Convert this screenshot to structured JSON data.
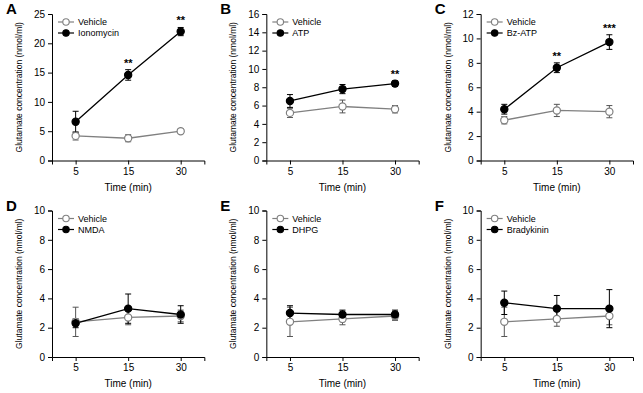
{
  "chart_data": [
    {
      "type": "line",
      "title": "A",
      "x_label": "Time (min)",
      "y_label": "Glutamate concentration (nmol/ml)",
      "categories": [
        "5",
        "15",
        "30"
      ],
      "ylim": [
        0,
        25
      ],
      "yticks": [
        0,
        5,
        10,
        15,
        20,
        25
      ],
      "grid": false,
      "legend": "upper-left",
      "series": [
        {
          "name": "Vehicle",
          "color": "#808080",
          "marker": "open-circle",
          "values": [
            4.2,
            3.8,
            5.0
          ],
          "errors": [
            0.7,
            0.6,
            0.4
          ]
        },
        {
          "name": "Ionomycin",
          "color": "#000000",
          "marker": "circle",
          "values": [
            6.6,
            14.6,
            22.0
          ],
          "errors": [
            1.8,
            0.9,
            0.7
          ]
        }
      ],
      "annotations": [
        {
          "text": "**",
          "x": "15"
        },
        {
          "text": "**",
          "x": "30"
        }
      ]
    },
    {
      "type": "line",
      "title": "B",
      "x_label": "Time (min)",
      "y_label": "Glutamate concentration (nmol/ml)",
      "categories": [
        "5",
        "15",
        "30"
      ],
      "ylim": [
        0,
        16
      ],
      "yticks": [
        0,
        2,
        4,
        6,
        8,
        10,
        12,
        14,
        16
      ],
      "grid": false,
      "legend": "upper-left",
      "series": [
        {
          "name": "Vehicle",
          "color": "#808080",
          "marker": "open-circle",
          "values": [
            5.2,
            5.9,
            5.6
          ],
          "errors": [
            0.5,
            0.7,
            0.4
          ]
        },
        {
          "name": "ATP",
          "color": "#000000",
          "marker": "circle",
          "values": [
            6.5,
            7.8,
            8.4
          ],
          "errors": [
            0.7,
            0.5,
            0.3
          ]
        }
      ],
      "annotations": [
        {
          "text": "**",
          "x": "30"
        }
      ]
    },
    {
      "type": "line",
      "title": "C",
      "x_label": "Time (min)",
      "y_label": "Glutamate concentration (nmol/ml)",
      "categories": [
        "5",
        "15",
        "30"
      ],
      "ylim": [
        0,
        12
      ],
      "yticks": [
        0,
        2,
        4,
        6,
        8,
        10,
        12
      ],
      "grid": false,
      "legend": "upper-left",
      "series": [
        {
          "name": "Vehicle",
          "color": "#808080",
          "marker": "open-circle",
          "values": [
            3.3,
            4.1,
            4.0
          ],
          "errors": [
            0.3,
            0.5,
            0.5
          ]
        },
        {
          "name": "Bz-ATP",
          "color": "#000000",
          "marker": "circle",
          "values": [
            4.2,
            7.6,
            9.7
          ],
          "errors": [
            0.4,
            0.4,
            0.6
          ]
        }
      ],
      "annotations": [
        {
          "text": "**",
          "x": "15"
        },
        {
          "text": "***",
          "x": "30"
        }
      ]
    },
    {
      "type": "line",
      "title": "D",
      "x_label": "Time (min)",
      "y_label": "Glutamate concentration (nmol/ml)",
      "categories": [
        "5",
        "15",
        "30"
      ],
      "ylim": [
        0,
        10
      ],
      "yticks": [
        0,
        2,
        4,
        6,
        8,
        10
      ],
      "grid": false,
      "legend": "upper-left",
      "series": [
        {
          "name": "Vehicle",
          "color": "#808080",
          "marker": "open-circle",
          "values": [
            2.4,
            2.7,
            2.8
          ],
          "errors": [
            1.0,
            0.5,
            0.4
          ]
        },
        {
          "name": "NMDA",
          "color": "#000000",
          "marker": "circle",
          "values": [
            2.3,
            3.3,
            2.9
          ],
          "errors": [
            0.3,
            1.0,
            0.6
          ]
        }
      ],
      "annotations": []
    },
    {
      "type": "line",
      "title": "E",
      "x_label": "Time (min)",
      "y_label": "Glutamate concentration (nmol/ml)",
      "categories": [
        "5",
        "15",
        "30"
      ],
      "ylim": [
        0,
        10
      ],
      "yticks": [
        0,
        2,
        4,
        6,
        8,
        10
      ],
      "grid": false,
      "legend": "upper-left",
      "series": [
        {
          "name": "Vehicle",
          "color": "#808080",
          "marker": "open-circle",
          "values": [
            2.4,
            2.6,
            2.8
          ],
          "errors": [
            1.0,
            0.4,
            0.3
          ]
        },
        {
          "name": "DHPG",
          "color": "#000000",
          "marker": "circle",
          "values": [
            3.0,
            2.9,
            2.9
          ],
          "errors": [
            0.5,
            0.3,
            0.3
          ]
        }
      ],
      "annotations": []
    },
    {
      "type": "line",
      "title": "F",
      "x_label": "Time (min)",
      "y_label": "Glutamate concentration (nmol/ml)",
      "categories": [
        "5",
        "15",
        "30"
      ],
      "ylim": [
        0,
        10
      ],
      "yticks": [
        0,
        2,
        4,
        6,
        8,
        10
      ],
      "grid": false,
      "legend": "upper-left",
      "series": [
        {
          "name": "Vehicle",
          "color": "#808080",
          "marker": "open-circle",
          "values": [
            2.4,
            2.6,
            2.8
          ],
          "errors": [
            1.0,
            0.5,
            0.6
          ]
        },
        {
          "name": "Bradykinin",
          "color": "#000000",
          "marker": "circle",
          "values": [
            3.7,
            3.3,
            3.3
          ],
          "errors": [
            0.8,
            0.9,
            1.3
          ]
        }
      ],
      "annotations": []
    }
  ]
}
